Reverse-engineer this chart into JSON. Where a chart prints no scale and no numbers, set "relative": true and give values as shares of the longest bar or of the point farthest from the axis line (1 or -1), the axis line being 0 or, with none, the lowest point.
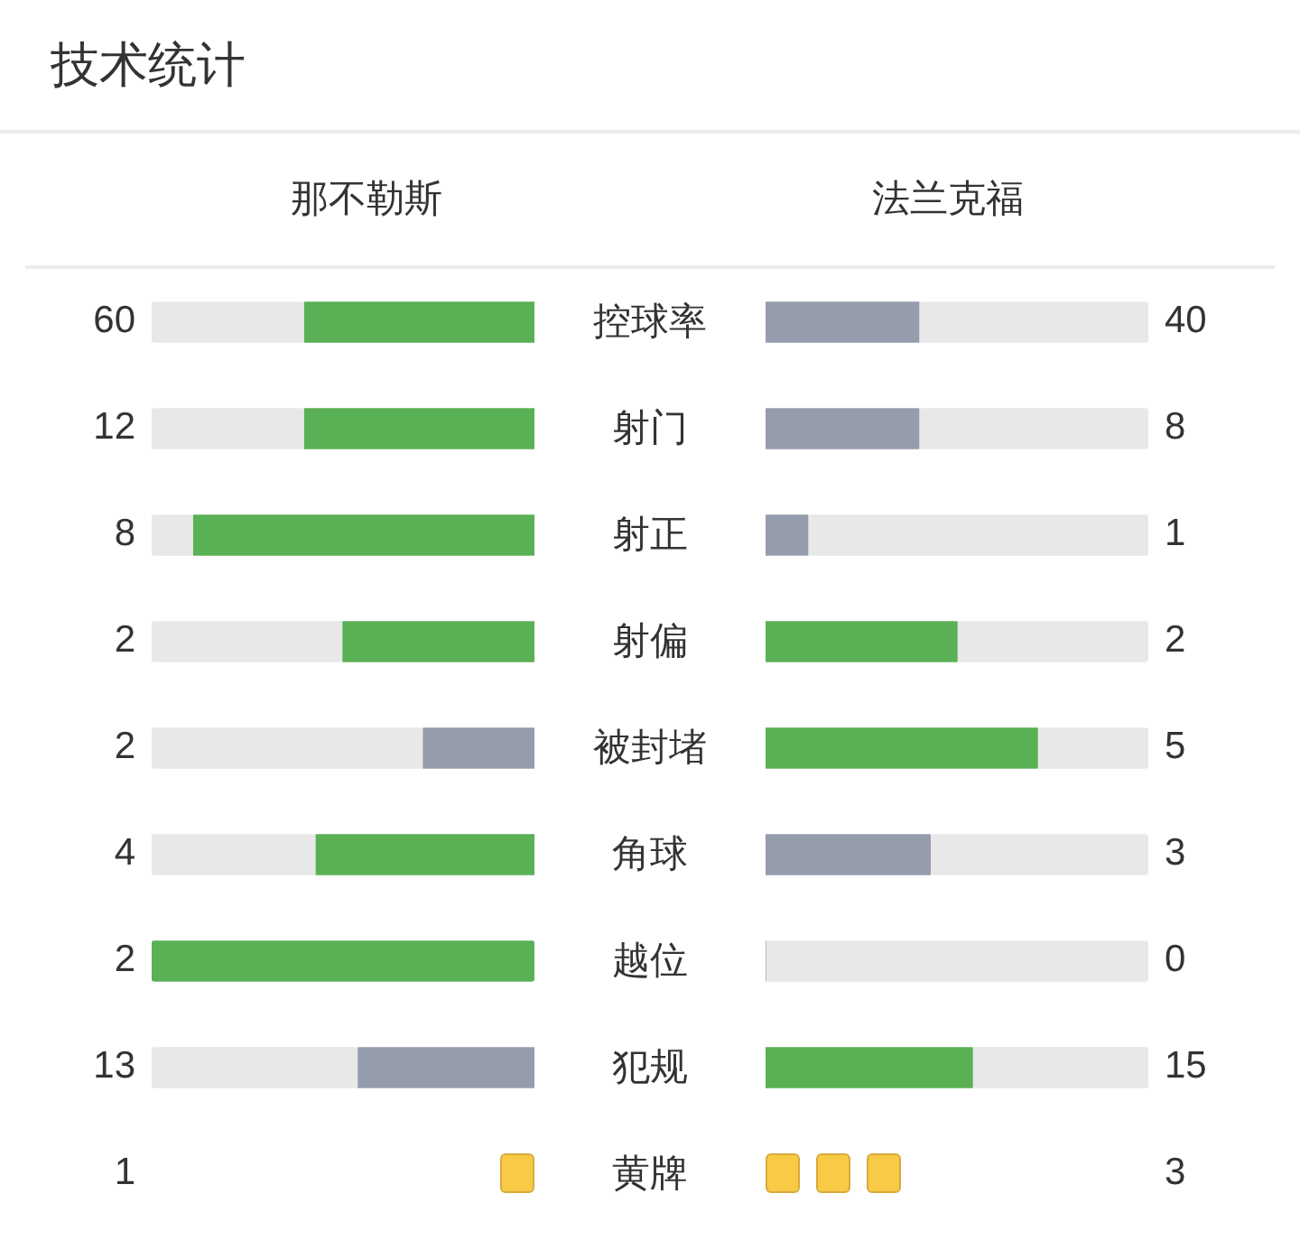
{
  "chart_data": [
    {
      "type": "bar",
      "orientation": "horizontal",
      "relative": true,
      "stacked": true,
      "title": "技术统计",
      "categories": [
        "控球率",
        "射门",
        "射正",
        "射偏",
        "被封堵",
        "角球",
        "越位",
        "犯规"
      ],
      "series": [
        {
          "name": "那不勒斯",
          "values": [
            0.6,
            0.6,
            0.89,
            0.5,
            0.29,
            0.57,
            1,
            0.46
          ],
          "colors": [
            "#5ab055",
            "#5ab055",
            "#5ab055",
            "#5ab055",
            "#959dad",
            "#5ab055",
            "#5ab055",
            "#959dad"
          ]
        },
        {
          "color": "#e8e8e8",
          "values": [
            0.4,
            0.4,
            0.11,
            0.5,
            0.71,
            0.43,
            0,
            0.54
          ]
        }
      ],
      "annotations": [
        "60",
        "12",
        "8",
        "2",
        "2",
        "4",
        "2",
        "13"
      ]
    },
    {
      "type": "bar",
      "orientation": "horizontal",
      "relative": true,
      "stacked": true,
      "categories": [
        null,
        null,
        null,
        null,
        null,
        null,
        null,
        null
      ],
      "series": [
        {
          "name": "法兰克福",
          "values": [
            0.4,
            0.4,
            0.11,
            0.5,
            0.71,
            0.43,
            0,
            0.54
          ],
          "colors": [
            "#959dad",
            "#959dad",
            "#959dad",
            "#5ab055",
            "#5ab055",
            "#959dad",
            "#959dad",
            "#5ab055"
          ]
        },
        {
          "color": "#e8e8e8",
          "values": [
            0.6,
            0.6,
            0.89,
            0.5,
            0.29,
            0.57,
            1,
            0.46
          ]
        }
      ],
      "annotations": [
        "40",
        "8",
        "1",
        "2",
        "5",
        "3",
        "0",
        "15"
      ]
    },
    {
      "type": "other",
      "categories": [
        "黄牌"
      ],
      "series": [
        {
          "color": "#f8ca45",
          "values": [
            1
          ]
        },
        {
          "color": "#f8ca45",
          "values": [
            3
          ]
        }
      ],
      "data_labels": true
    }
  ]
}
